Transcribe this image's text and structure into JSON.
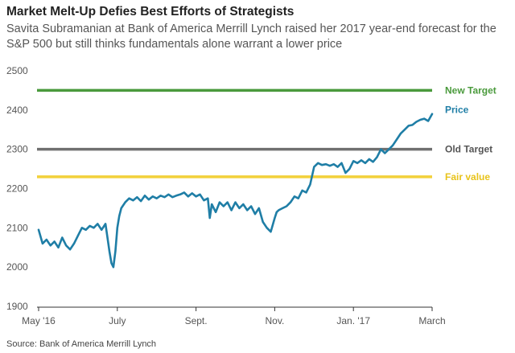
{
  "header": {
    "title": "Market Melt-Up Defies Best Efforts of Strategists",
    "subtitle": "Savita Subramanian at Bank of America Merrill Lynch raised her 2017 year-end forecast for the S&P 500 but still thinks fundamentals alone warrant a lower price"
  },
  "footer": {
    "source": "Source: Bank of America Merrill Lynch"
  },
  "chart_data": {
    "type": "line",
    "title": "Market Melt-Up Defies Best Efforts of Strategists",
    "xlabel": "",
    "ylabel": "",
    "ylim": [
      1900,
      2500
    ],
    "yticks": [
      1900,
      2000,
      2100,
      2200,
      2300,
      2400,
      2500
    ],
    "xticks": [
      "May '16",
      "July",
      "Sept.",
      "Nov.",
      "Jan. '17",
      "March"
    ],
    "grid": false,
    "reference_lines": [
      {
        "name": "New Target",
        "value": 2450,
        "color": "#4a9a3c"
      },
      {
        "name": "Old Target",
        "value": 2300,
        "color": "#707070"
      },
      {
        "name": "Fair value",
        "value": 2230,
        "color": "#f2d13a"
      }
    ],
    "series": [
      {
        "name": "Price",
        "color": "#1f7ea6",
        "x_months": [
          0,
          0.1,
          0.2,
          0.3,
          0.4,
          0.5,
          0.6,
          0.7,
          0.8,
          0.9,
          1.0,
          1.1,
          1.2,
          1.3,
          1.4,
          1.5,
          1.6,
          1.7,
          1.8,
          1.85,
          1.9,
          1.95,
          2.0,
          2.05,
          2.1,
          2.2,
          2.3,
          2.4,
          2.5,
          2.6,
          2.7,
          2.8,
          2.9,
          3.0,
          3.1,
          3.2,
          3.3,
          3.4,
          3.5,
          3.6,
          3.7,
          3.8,
          3.9,
          4.0,
          4.1,
          4.2,
          4.3,
          4.35,
          4.4,
          4.5,
          4.6,
          4.7,
          4.8,
          4.9,
          5.0,
          5.1,
          5.2,
          5.3,
          5.4,
          5.5,
          5.6,
          5.7,
          5.8,
          5.9,
          6.0,
          6.05,
          6.1,
          6.2,
          6.3,
          6.4,
          6.5,
          6.6,
          6.7,
          6.8,
          6.9,
          7.0,
          7.1,
          7.2,
          7.3,
          7.4,
          7.5,
          7.6,
          7.7,
          7.8,
          7.9,
          8.0,
          8.1,
          8.2,
          8.3,
          8.4,
          8.5,
          8.6,
          8.7,
          8.8,
          8.9,
          9.0,
          9.1,
          9.2,
          9.3,
          9.4,
          9.5,
          9.6,
          9.7,
          9.8,
          9.9,
          10.0
        ],
        "values": [
          2095,
          2060,
          2070,
          2055,
          2065,
          2050,
          2075,
          2055,
          2045,
          2060,
          2080,
          2100,
          2095,
          2105,
          2100,
          2110,
          2095,
          2110,
          2040,
          2010,
          2000,
          2040,
          2100,
          2130,
          2150,
          2165,
          2175,
          2170,
          2178,
          2168,
          2182,
          2172,
          2180,
          2175,
          2182,
          2178,
          2185,
          2178,
          2182,
          2185,
          2190,
          2180,
          2188,
          2180,
          2185,
          2170,
          2175,
          2125,
          2160,
          2140,
          2165,
          2155,
          2165,
          2145,
          2165,
          2150,
          2160,
          2145,
          2155,
          2135,
          2150,
          2115,
          2100,
          2090,
          2125,
          2140,
          2145,
          2150,
          2155,
          2165,
          2180,
          2175,
          2195,
          2190,
          2210,
          2255,
          2265,
          2260,
          2262,
          2258,
          2262,
          2255,
          2265,
          2240,
          2250,
          2270,
          2265,
          2272,
          2265,
          2275,
          2268,
          2280,
          2300,
          2290,
          2300,
          2310,
          2325,
          2340,
          2350,
          2360,
          2362,
          2370,
          2375,
          2378,
          2372,
          2390
        ]
      }
    ]
  }
}
